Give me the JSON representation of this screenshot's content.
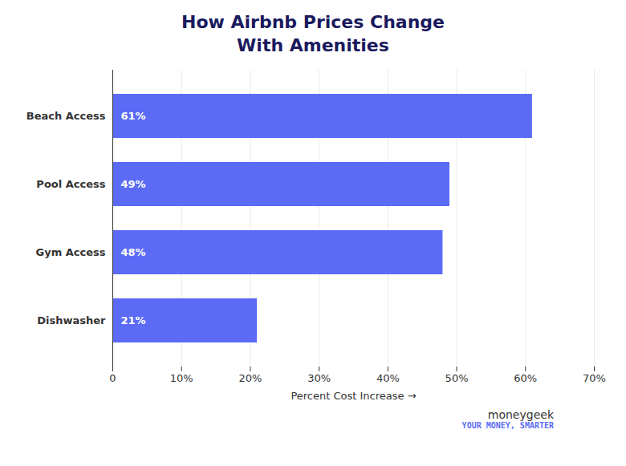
{
  "chart_data": {
    "type": "bar",
    "orientation": "horizontal",
    "title": "How Airbnb Prices Change\nWith Amenities",
    "xlabel": "Percent Cost Increase",
    "categories": [
      "Beach Access",
      "Pool Access",
      "Gym Access",
      "Dishwasher"
    ],
    "values": [
      61,
      49,
      48,
      21
    ],
    "value_labels": [
      "61%",
      "49%",
      "48%",
      "21%"
    ],
    "data_labels": true,
    "color": "#5B6BF5",
    "xlim": [
      0,
      70
    ],
    "xticks": [
      0,
      {
        "value": 10,
        "label": "10%"
      },
      {
        "value": 20,
        "label": "20%"
      },
      {
        "value": 30,
        "label": "30%"
      },
      {
        "value": 40,
        "label": "40%"
      },
      {
        "value": 50,
        "label": "50%"
      },
      {
        "value": 60,
        "label": "60%"
      },
      {
        "value": 70,
        "label": "70%"
      }
    ],
    "grid": true,
    "annotations": [
      "moneygeek",
      "YOUR MONEY, SMARTER"
    ]
  }
}
